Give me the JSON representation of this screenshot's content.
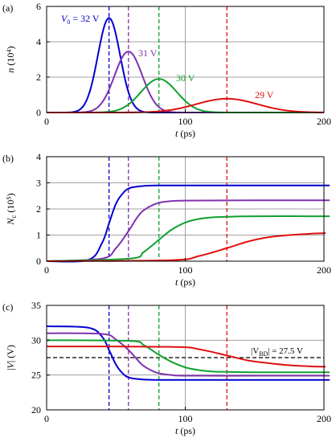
{
  "chart_data": [
    {
      "panel_label": "(a)",
      "type": "line",
      "xlabel": "t (ps)",
      "ylabel_main": "n",
      "ylabel_unit": "(10⁴)",
      "xlim": [
        0,
        200
      ],
      "ylim": [
        0,
        6
      ],
      "xticks": [
        0,
        100,
        200
      ],
      "yticks": [
        0,
        2,
        4,
        6
      ],
      "grid": true,
      "series": [
        {
          "label": "V₀ = 32 V",
          "color": "#0000d0",
          "peak_t": 45,
          "peak": 5.35,
          "width": 8,
          "vline": 45,
          "x": [
            20,
            30,
            35,
            40,
            45,
            50,
            55,
            60,
            65,
            70,
            80
          ],
          "y": [
            0.05,
            0.7,
            2.1,
            4.3,
            5.35,
            4.7,
            3.0,
            1.5,
            0.6,
            0.2,
            0.0
          ]
        },
        {
          "label": "31 V",
          "color": "#8030b0",
          "peak_t": 59,
          "peak": 3.45,
          "width": 10,
          "vline": 59,
          "x": [
            30,
            40,
            45,
            50,
            55,
            59,
            65,
            70,
            75,
            80,
            90,
            100
          ],
          "y": [
            0.05,
            0.4,
            1.1,
            2.1,
            3.1,
            3.45,
            3.0,
            2.1,
            1.2,
            0.6,
            0.1,
            0.0
          ]
        },
        {
          "label": "30 V",
          "color": "#10a030",
          "peak_t": 81,
          "peak": 1.9,
          "width": 13,
          "vline": 81,
          "x": [
            40,
            50,
            60,
            70,
            75,
            81,
            90,
            100,
            110,
            120,
            130
          ],
          "y": [
            0.0,
            0.12,
            0.5,
            1.2,
            1.65,
            1.9,
            1.6,
            0.95,
            0.4,
            0.12,
            0.0
          ]
        },
        {
          "label": "29 V",
          "color": "#e01010",
          "peak_t": 130,
          "peak": 0.78,
          "width": 22,
          "vline": 130,
          "x": [
            70,
            90,
            100,
            110,
            120,
            130,
            140,
            150,
            160,
            170,
            185,
            200
          ],
          "y": [
            0.0,
            0.05,
            0.15,
            0.35,
            0.6,
            0.78,
            0.7,
            0.5,
            0.3,
            0.15,
            0.04,
            0.0
          ]
        }
      ]
    },
    {
      "panel_label": "(b)",
      "type": "line",
      "xlabel": "t (ps)",
      "ylabel_main": "N",
      "ylabel_sub": "c",
      "ylabel_unit": "(10⁵)",
      "xlim": [
        0,
        200
      ],
      "ylim": [
        0,
        4
      ],
      "xticks": [
        0,
        100,
        200
      ],
      "yticks": [
        0,
        1,
        2,
        3,
        4
      ],
      "grid": true,
      "series": [
        {
          "color": "#0000d0",
          "final": 2.9,
          "vline": 45,
          "x": [
            0,
            30,
            40,
            45,
            50,
            55,
            60,
            70,
            80,
            100,
            150,
            200
          ],
          "y": [
            0,
            0.05,
            0.7,
            1.45,
            2.2,
            2.6,
            2.8,
            2.88,
            2.9,
            2.9,
            2.9,
            2.9
          ]
        },
        {
          "color": "#8030b0",
          "final": 2.33,
          "vline": 59,
          "x": [
            0,
            40,
            50,
            59,
            65,
            70,
            80,
            90,
            100,
            150,
            200
          ],
          "y": [
            0,
            0.1,
            0.5,
            1.15,
            1.65,
            1.95,
            2.22,
            2.3,
            2.32,
            2.33,
            2.33
          ]
        },
        {
          "color": "#10a030",
          "final": 1.72,
          "vline": 81,
          "x": [
            0,
            60,
            70,
            81,
            90,
            100,
            110,
            120,
            130,
            150,
            200
          ],
          "y": [
            0,
            0.1,
            0.35,
            0.82,
            1.2,
            1.48,
            1.62,
            1.68,
            1.7,
            1.72,
            1.72
          ]
        },
        {
          "color": "#e01010",
          "final": 1.07,
          "vline": 130,
          "x": [
            0,
            90,
            110,
            130,
            145,
            160,
            175,
            190,
            200
          ],
          "y": [
            0,
            0.04,
            0.2,
            0.5,
            0.75,
            0.92,
            1.0,
            1.05,
            1.07
          ]
        }
      ]
    },
    {
      "panel_label": "(c)",
      "type": "line",
      "xlabel": "t (ps)",
      "ylabel": "|V| (V)",
      "xlim": [
        0,
        200
      ],
      "ylim": [
        20,
        35
      ],
      "xticks": [
        0,
        100,
        200
      ],
      "yticks": [
        20,
        25,
        30,
        35
      ],
      "grid": true,
      "hline": {
        "value": 27.5,
        "label": "|V_BD| = 27.5 V"
      },
      "series": [
        {
          "color": "#0000d0",
          "start": 32,
          "end": 24.3,
          "vline": 45,
          "x": [
            0,
            30,
            40,
            45,
            50,
            55,
            60,
            70,
            80,
            100,
            150,
            200
          ],
          "y": [
            32,
            31.8,
            30.5,
            28.6,
            26.5,
            25.2,
            24.6,
            24.35,
            24.3,
            24.3,
            24.3,
            24.3
          ]
        },
        {
          "color": "#8030b0",
          "start": 31,
          "end": 24.9,
          "vline": 59,
          "x": [
            0,
            40,
            50,
            59,
            65,
            70,
            80,
            90,
            100,
            150,
            200
          ],
          "y": [
            31,
            30.9,
            30.1,
            28.6,
            27.3,
            26.3,
            25.3,
            25.0,
            24.9,
            24.9,
            24.9
          ]
        },
        {
          "color": "#10a030",
          "start": 30,
          "end": 25.4,
          "vline": 81,
          "x": [
            0,
            60,
            70,
            81,
            90,
            100,
            110,
            120,
            130,
            150,
            200
          ],
          "y": [
            30,
            29.9,
            29.3,
            27.9,
            26.9,
            26.1,
            25.7,
            25.5,
            25.45,
            25.4,
            25.4
          ]
        },
        {
          "color": "#e01010",
          "start": 29.1,
          "end": 26.2,
          "vline": 130,
          "x": [
            0,
            90,
            110,
            130,
            145,
            160,
            175,
            190,
            200
          ],
          "y": [
            29.1,
            29.05,
            28.7,
            27.8,
            27.1,
            26.7,
            26.4,
            26.25,
            26.2
          ]
        }
      ]
    }
  ]
}
